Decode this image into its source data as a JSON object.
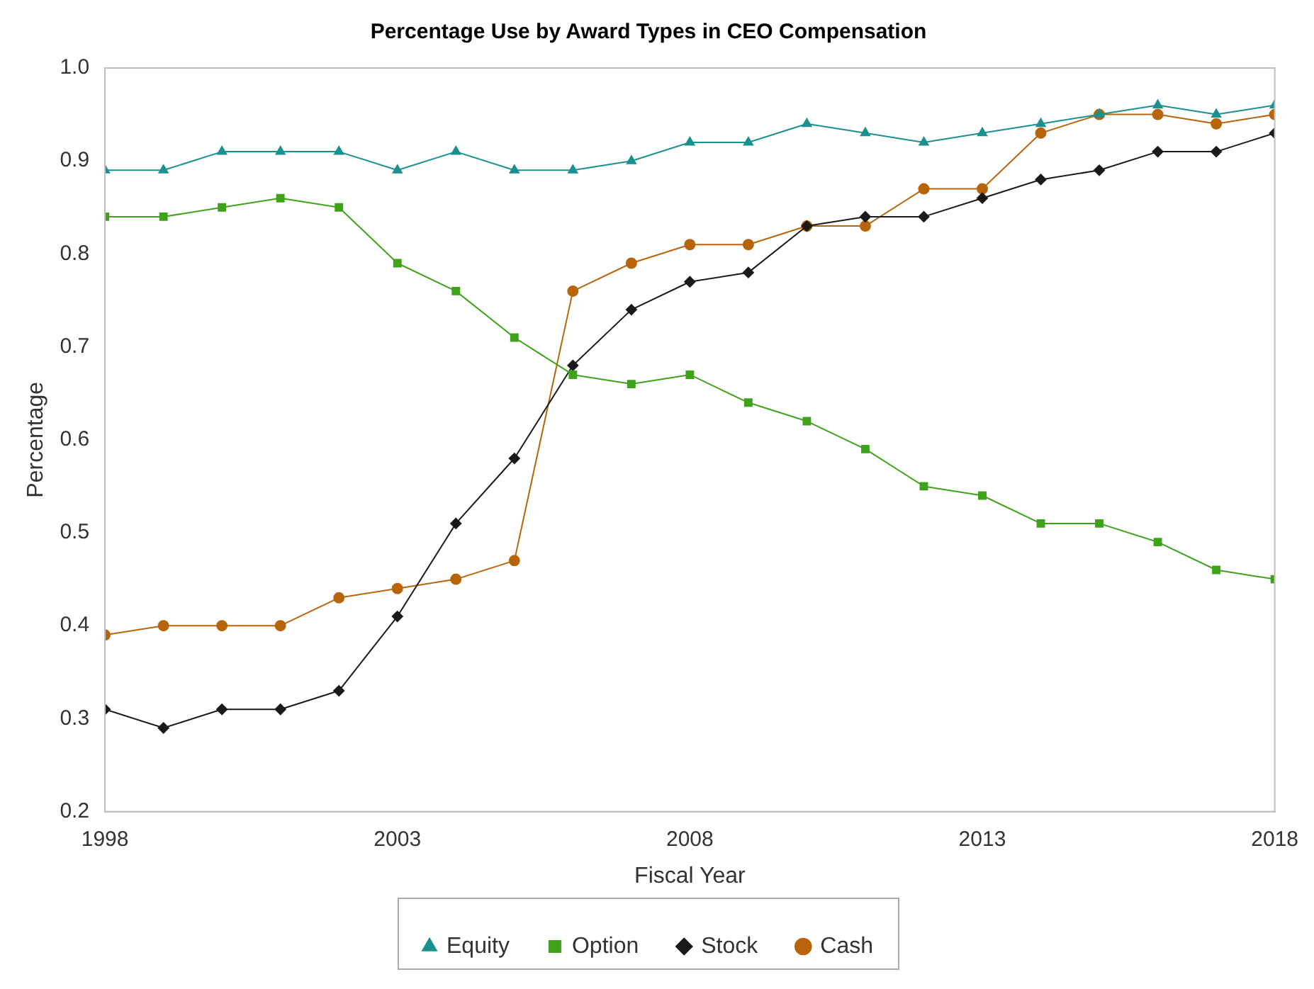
{
  "chart_data": {
    "type": "line",
    "title": "Percentage Use by Award Types in CEO Compensation",
    "xlabel": "Fiscal Year",
    "ylabel": "Percentage",
    "x": [
      1998,
      1999,
      2000,
      2001,
      2002,
      2003,
      2004,
      2005,
      2006,
      2007,
      2008,
      2009,
      2010,
      2011,
      2012,
      2013,
      2014,
      2015,
      2016,
      2017,
      2018
    ],
    "series": [
      {
        "name": "Equity",
        "color": "#1a9090",
        "marker": "triangle",
        "values": [
          0.89,
          0.89,
          0.91,
          0.91,
          0.91,
          0.89,
          0.91,
          0.89,
          0.89,
          0.9,
          0.92,
          0.92,
          0.94,
          0.93,
          0.92,
          0.93,
          0.94,
          0.95,
          0.96,
          0.95,
          0.96
        ]
      },
      {
        "name": "Option",
        "color": "#3fa31a",
        "marker": "square",
        "values": [
          0.84,
          0.84,
          0.85,
          0.86,
          0.85,
          0.79,
          0.76,
          0.71,
          0.67,
          0.66,
          0.67,
          0.64,
          0.62,
          0.59,
          0.55,
          0.54,
          0.51,
          0.51,
          0.49,
          0.46,
          0.45
        ]
      },
      {
        "name": "Stock",
        "color": "#1a1a1a",
        "marker": "diamond",
        "values": [
          0.31,
          0.29,
          0.31,
          0.31,
          0.33,
          0.41,
          0.51,
          0.58,
          0.68,
          0.74,
          0.77,
          0.78,
          0.83,
          0.84,
          0.84,
          0.86,
          0.88,
          0.89,
          0.91,
          0.91,
          0.93
        ]
      },
      {
        "name": "Cash",
        "color": "#b8650a",
        "marker": "circle",
        "values": [
          0.39,
          0.4,
          0.4,
          0.4,
          0.43,
          0.44,
          0.45,
          0.47,
          0.76,
          0.79,
          0.81,
          0.81,
          0.83,
          0.83,
          0.87,
          0.87,
          0.93,
          0.95,
          0.95,
          0.94,
          0.95
        ]
      }
    ],
    "xlim": [
      1998,
      2018
    ],
    "xticks": [
      1998,
      2003,
      2008,
      2013,
      2018
    ],
    "ylim": [
      0.2,
      1.0
    ],
    "yticks": [
      0.2,
      0.3,
      0.4,
      0.5,
      0.6,
      0.7,
      0.8,
      0.9,
      {
        "value": 1.0,
        "label": "1.0"
      }
    ],
    "grid": false,
    "legend": "bottom",
    "line_style": "solid"
  }
}
